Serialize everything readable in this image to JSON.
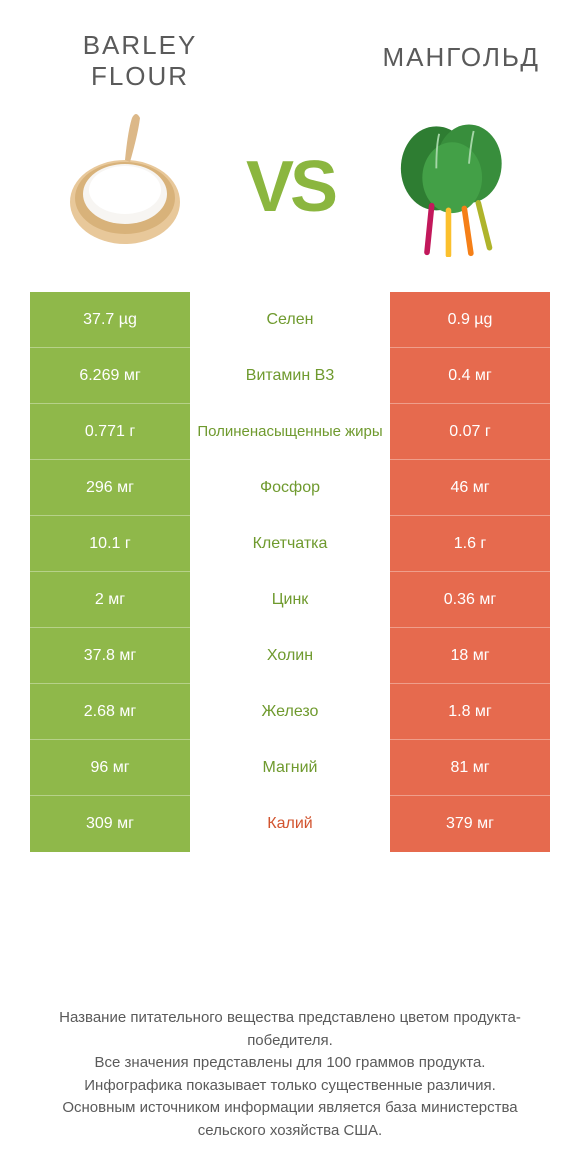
{
  "colors": {
    "left": "#8fb84a",
    "right": "#e66a4e",
    "winner_left_text": "#6f9a2e",
    "winner_right_text": "#d2542f",
    "neutral_text": "#5a5a5a",
    "row_border": "rgba(255,255,255,0.35)"
  },
  "header": {
    "left_line1": "BARLEY",
    "left_line2": "FLOUR",
    "right": "МАНГОЛЬД",
    "vs": "VS"
  },
  "rows": [
    {
      "left": "37.7 µg",
      "label": "Селен",
      "right": "0.9 µg",
      "winner": "left"
    },
    {
      "left": "6.269 мг",
      "label": "Витамин B3",
      "right": "0.4 мг",
      "winner": "left"
    },
    {
      "left": "0.771 г",
      "label": "Полиненасыщенные жиры",
      "right": "0.07 г",
      "winner": "left"
    },
    {
      "left": "296 мг",
      "label": "Фосфор",
      "right": "46 мг",
      "winner": "left"
    },
    {
      "left": "10.1 г",
      "label": "Клетчатка",
      "right": "1.6 г",
      "winner": "left"
    },
    {
      "left": "2 мг",
      "label": "Цинк",
      "right": "0.36 мг",
      "winner": "left"
    },
    {
      "left": "37.8 мг",
      "label": "Холин",
      "right": "18 мг",
      "winner": "left"
    },
    {
      "left": "2.68 мг",
      "label": "Железо",
      "right": "1.8 мг",
      "winner": "left"
    },
    {
      "left": "96 мг",
      "label": "Магний",
      "right": "81 мг",
      "winner": "left"
    },
    {
      "left": "309 мг",
      "label": "Калий",
      "right": "379 мг",
      "winner": "right"
    }
  ],
  "footer": {
    "l1": "Название питательного вещества представлено цветом продукта-победителя.",
    "l2": "Все значения представлены для 100 граммов продукта.",
    "l3": "Инфографика показывает только существенные различия.",
    "l4": "Основным источником информации является база министерства сельского хозяйства США."
  }
}
